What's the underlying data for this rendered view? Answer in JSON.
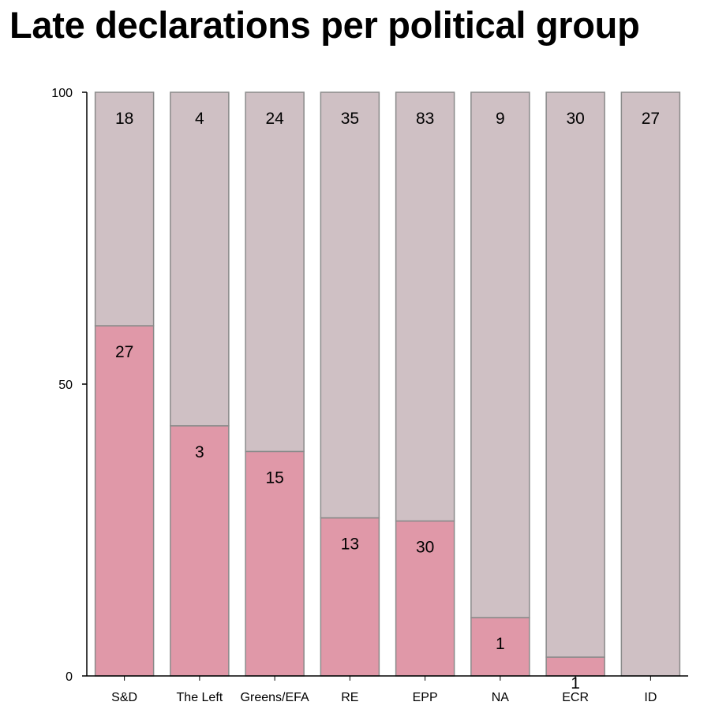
{
  "chart_data": {
    "type": "bar",
    "stacked": true,
    "normalized_to": 100,
    "title": "Late declarations per political group",
    "xlabel": "",
    "ylabel": "",
    "ylim": [
      0,
      100
    ],
    "yticks": [
      0,
      50,
      100
    ],
    "grid": false,
    "categories": [
      "S&D",
      "The Left",
      "Greens/EFA",
      "RE",
      "EPP",
      "NA",
      "ECR",
      "ID"
    ],
    "series": [
      {
        "color": "#e098a8",
        "values": [
          27,
          3,
          15,
          13,
          30,
          1,
          1,
          0
        ],
        "labels": [
          "27",
          "3",
          "15",
          "13",
          "30",
          "1",
          "1",
          ""
        ]
      },
      {
        "color": "#cfc0c4",
        "values": [
          18,
          4,
          24,
          35,
          83,
          9,
          30,
          27
        ],
        "labels": [
          "18",
          "4",
          "24",
          "35",
          "83",
          "9",
          "30",
          "27"
        ]
      }
    ]
  }
}
